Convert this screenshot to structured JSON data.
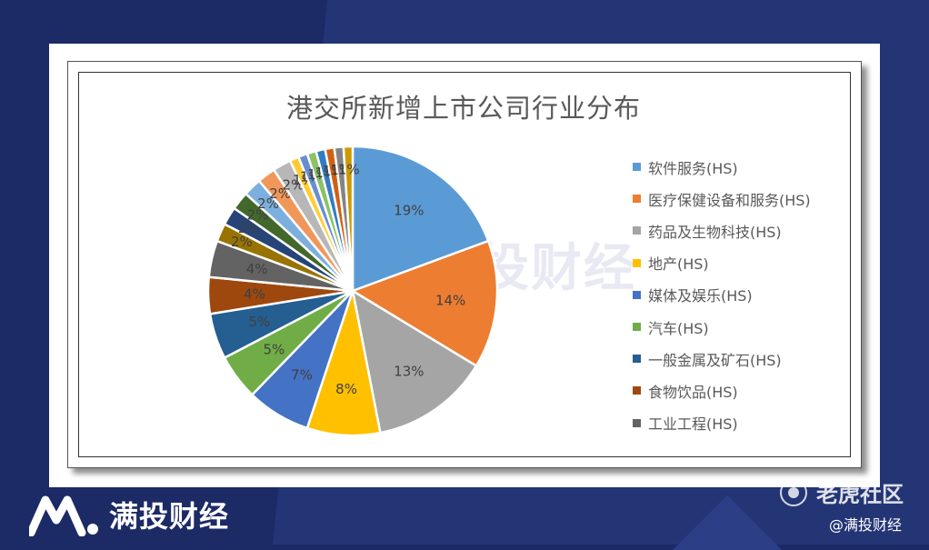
{
  "chart_data": {
    "type": "pie",
    "title": "港交所新增上市公司行业分布",
    "slices": [
      {
        "label": "软件服务(HS)",
        "value": 19,
        "data_label": "19%",
        "color": "#5b9bd5"
      },
      {
        "label": "医疗保健设备和服务(HS)",
        "value": 14,
        "data_label": "14%",
        "color": "#ed7d31"
      },
      {
        "label": "药品及生物科技(HS)",
        "value": 13,
        "data_label": "13%",
        "color": "#a5a5a5"
      },
      {
        "label": "地产(HS)",
        "value": 8,
        "data_label": "8%",
        "color": "#ffc000"
      },
      {
        "label": "媒体及娱乐(HS)",
        "value": 7,
        "data_label": "7%",
        "color": "#4472c4"
      },
      {
        "label": "汽车(HS)",
        "value": 5,
        "data_label": "5%",
        "color": "#70ad47"
      },
      {
        "label": "一般金属及矿石(HS)",
        "value": 5,
        "data_label": "5%",
        "color": "#255e91"
      },
      {
        "label": "食物饮品(HS)",
        "value": 4,
        "data_label": "4%",
        "color": "#9e480e"
      },
      {
        "label": "工业工程(HS)",
        "value": 4,
        "data_label": "4%",
        "color": "#636363"
      },
      {
        "label": "",
        "value": 2,
        "data_label": "2%",
        "color": "#997300"
      },
      {
        "label": "",
        "value": 2,
        "data_label": "2%",
        "color": "#264478"
      },
      {
        "label": "",
        "value": 2,
        "data_label": "2%",
        "color": "#43682b"
      },
      {
        "label": "",
        "value": 2,
        "data_label": "2%",
        "color": "#7cafdd"
      },
      {
        "label": "",
        "value": 2,
        "data_label": "2%",
        "color": "#f1975a"
      },
      {
        "label": "",
        "value": 2,
        "data_label": "2%",
        "color": "#b7b7b7"
      },
      {
        "label": "",
        "value": 1,
        "data_label": "1%",
        "color": "#ffcd33"
      },
      {
        "label": "",
        "value": 1,
        "data_label": "1%",
        "color": "#698ed0"
      },
      {
        "label": "",
        "value": 1,
        "data_label": "1%",
        "color": "#8cc168"
      },
      {
        "label": "",
        "value": 1,
        "data_label": "1%",
        "color": "#327dc2"
      },
      {
        "label": "",
        "value": 1,
        "data_label": "1%",
        "color": "#d26012"
      },
      {
        "label": "",
        "value": 1,
        "data_label": "1%",
        "color": "#848484"
      },
      {
        "label": "",
        "value": 1,
        "data_label": "1%",
        "color": "#cc9a00"
      }
    ],
    "legend_position": "right"
  },
  "watermark": "满投财经",
  "footer": {
    "brand": "满投财经",
    "tiger_community": "老虎社区",
    "handle": "@满投财经"
  }
}
